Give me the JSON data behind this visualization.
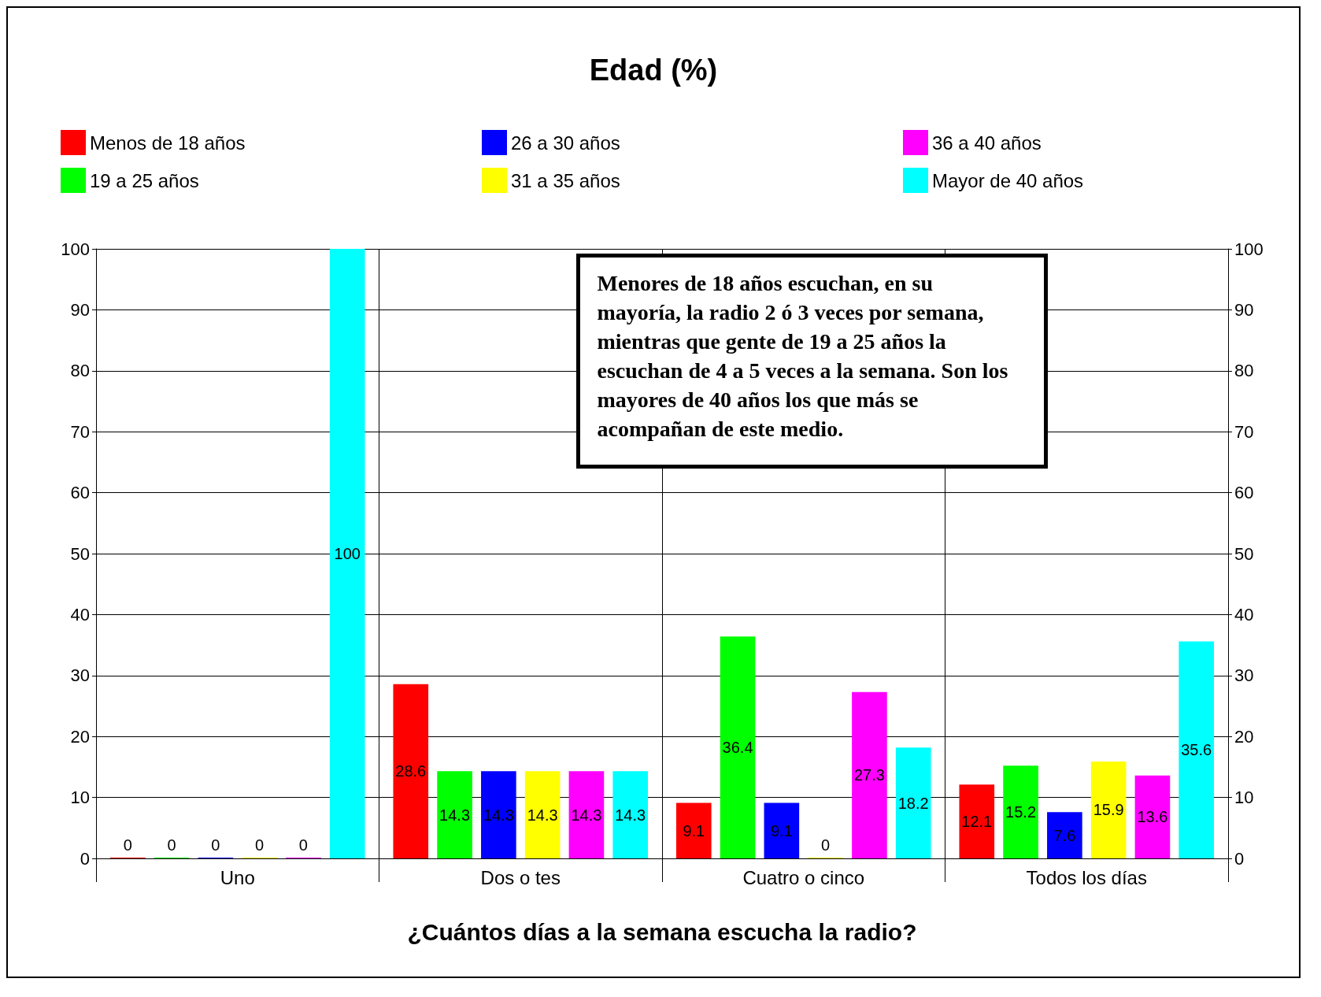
{
  "chart_data": {
    "type": "bar",
    "title": "Edad (%)",
    "xlabel": "¿Cuántos días a la semana escucha la radio?",
    "categories": [
      "Uno",
      "Dos o tes",
      "Cuatro o cinco",
      "Todos los días"
    ],
    "series": [
      {
        "name": "Menos de 18 años",
        "color": "#ff0000",
        "values": [
          0,
          28.6,
          9.1,
          12.1
        ]
      },
      {
        "name": "19 a 25 años",
        "color": "#00ff00",
        "values": [
          0,
          14.3,
          36.4,
          15.2
        ]
      },
      {
        "name": "26 a 30 años",
        "color": "#0000ff",
        "values": [
          0,
          14.3,
          9.1,
          7.6
        ]
      },
      {
        "name": "31 a 35 años",
        "color": "#ffff00",
        "values": [
          0,
          14.3,
          0,
          15.9
        ]
      },
      {
        "name": "36 a 40 años",
        "color": "#ff00ff",
        "values": [
          0,
          14.3,
          27.3,
          13.6
        ]
      },
      {
        "name": "Mayor de 40 años",
        "color": "#00ffff",
        "values": [
          100,
          14.3,
          18.2,
          35.6
        ]
      }
    ],
    "ylim": [
      0,
      100
    ],
    "yticks": [
      0,
      10,
      20,
      30,
      40,
      50,
      60,
      70,
      80,
      90,
      100
    ],
    "y2lim": [
      0,
      100
    ],
    "y2ticks": [
      0,
      10,
      20,
      30,
      40,
      50,
      60,
      70,
      80,
      90,
      100
    ],
    "data_labels": true,
    "grid": true,
    "legend": "top",
    "annotations": [
      "Menores de 18 años escuchan, en su mayoría, la radio 2 ó 3 veces por semana, mientras que gente de 19 a 25 años la escuchan de 4 a 5 veces a la semana. Son los mayores de 40 años los que más se acompañan de este medio."
    ]
  }
}
